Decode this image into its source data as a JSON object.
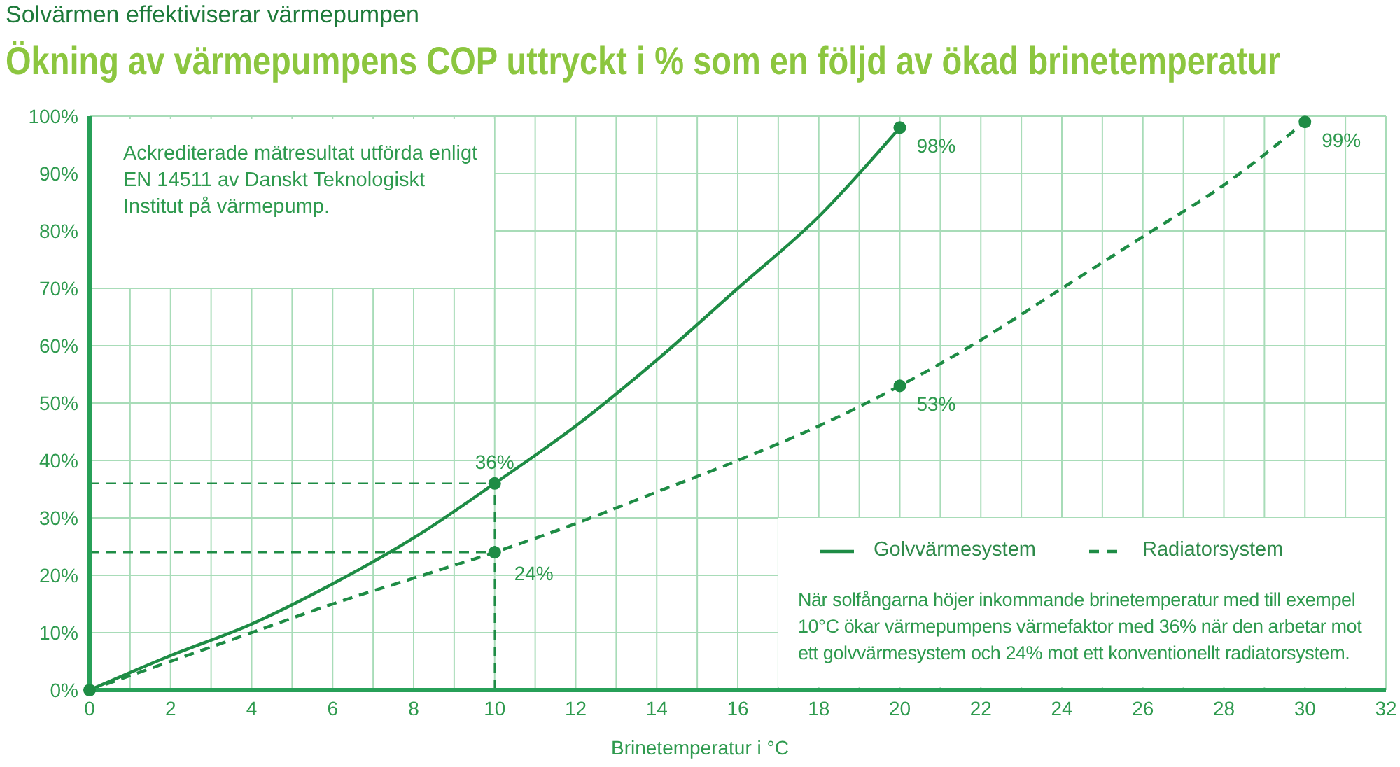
{
  "chart_data": {
    "type": "line",
    "subtitle": "Solvärmen effektiviserar värmepumpen",
    "title": "Ökning av värmepumpens COP uttryckt i % som en följd av ökad brinetemperatur",
    "xlabel": "Brinetemperatur i °C",
    "series": [
      {
        "name": "Golvvärmesystem",
        "color": "#1e8c45",
        "line_style": "solid",
        "marker": "none",
        "x": [
          0,
          2,
          4,
          6,
          8,
          10,
          12,
          14,
          16,
          18,
          20
        ],
        "values": [
          0,
          6,
          11.5,
          18.5,
          26.5,
          36,
          46,
          57.5,
          70,
          82.5,
          98
        ]
      },
      {
        "name": "Radiatorsystem",
        "color": "#1e8c45",
        "line_style": "dashed",
        "marker": "none",
        "x": [
          0,
          2,
          4,
          6,
          8,
          10,
          12,
          14,
          16,
          18,
          20,
          22,
          24,
          26,
          28,
          30
        ],
        "values": [
          0,
          5,
          10,
          15,
          19.5,
          24,
          29,
          34.5,
          40,
          46,
          53,
          61,
          70,
          79,
          88,
          99
        ]
      },
      {
        "type": "scatter",
        "marker": "circle",
        "color": "#1e8c45",
        "x": [
          0,
          10,
          20
        ],
        "values": [
          0,
          36,
          98
        ],
        "value_labels": [
          null,
          "36%",
          "98%"
        ]
      },
      {
        "type": "scatter",
        "marker": "circle",
        "color": "#1e8c45",
        "x": [
          10,
          20,
          30
        ],
        "values": [
          24,
          53,
          99
        ],
        "value_labels": [
          "24%",
          "53%",
          "99%"
        ]
      }
    ],
    "xlim": [
      0,
      32
    ],
    "xticks": [
      0,
      {
        "value": 1,
        "label": null
      },
      2,
      {
        "value": 3,
        "label": null
      },
      4,
      {
        "value": 5,
        "label": null
      },
      6,
      {
        "value": 7,
        "label": null
      },
      8,
      {
        "value": 9,
        "label": null
      },
      10,
      {
        "value": 11,
        "label": null
      },
      12,
      {
        "value": 13,
        "label": null
      },
      14,
      {
        "value": 15,
        "label": null
      },
      16,
      {
        "value": 17,
        "label": null
      },
      18,
      {
        "value": 19,
        "label": null
      },
      20,
      {
        "value": 21,
        "label": null
      },
      22,
      {
        "value": 23,
        "label": null
      },
      24,
      {
        "value": 25,
        "label": null
      },
      26,
      {
        "value": 27,
        "label": null
      },
      28,
      {
        "value": 29,
        "label": null
      },
      30,
      {
        "value": 31,
        "label": null
      },
      32
    ],
    "ylim": [
      0,
      100
    ],
    "yticks": [
      {
        "value": 0,
        "label": "0%"
      },
      {
        "value": 10,
        "label": "10%"
      },
      {
        "value": 20,
        "label": "20%"
      },
      {
        "value": 30,
        "label": "30%"
      },
      {
        "value": 40,
        "label": "40%"
      },
      {
        "value": 50,
        "label": "50%"
      },
      {
        "value": 60,
        "label": "60%"
      },
      {
        "value": 70,
        "label": "70%"
      },
      {
        "value": 80,
        "label": "80%"
      },
      {
        "value": 90,
        "label": "90%"
      },
      {
        "value": 100,
        "label": "100%"
      }
    ],
    "grid": true,
    "legend": "bottom right",
    "ref_lines": [
      {
        "axis": "y",
        "value": 36,
        "line_style": "dashed",
        "color": "#1e8c45"
      },
      {
        "axis": "y",
        "value": 24,
        "line_style": "dashed",
        "color": "#1e8c45"
      },
      {
        "axis": "x",
        "value": 10,
        "line_style": "dashed",
        "color": "#1e8c45"
      }
    ],
    "annotations": [
      "Ackrediterade mätresultat utförda enligt EN 14511 av Danskt Teknologiskt Institut på värmepump.",
      "När solfångarna höjer inkommande brinetemperatur med till exempel 10°C ökar värmepumpens värmefaktor med 36% när den arbetar mot ett golvvärmesystem och 24% mot ett konventionellt radiatorsystem."
    ]
  }
}
